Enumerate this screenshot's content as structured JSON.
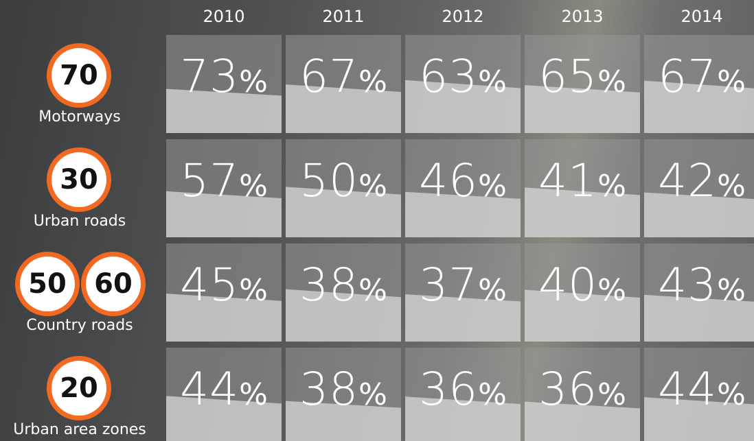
{
  "table": {
    "unit": "%",
    "columns": [
      "2010",
      "2011",
      "2012",
      "2013",
      "2014"
    ],
    "rows": [
      {
        "label": "Motorways",
        "signs": [
          "70"
        ],
        "values": [
          73,
          67,
          63,
          65,
          67
        ]
      },
      {
        "label": "Urban roads",
        "signs": [
          "30"
        ],
        "values": [
          57,
          50,
          46,
          41,
          42
        ]
      },
      {
        "label": "Country roads",
        "signs": [
          "50",
          "60"
        ],
        "values": [
          45,
          38,
          37,
          40,
          43
        ]
      },
      {
        "label": "Urban area zones",
        "signs": [
          "20"
        ],
        "values": [
          44,
          38,
          36,
          36,
          44
        ]
      }
    ]
  }
}
